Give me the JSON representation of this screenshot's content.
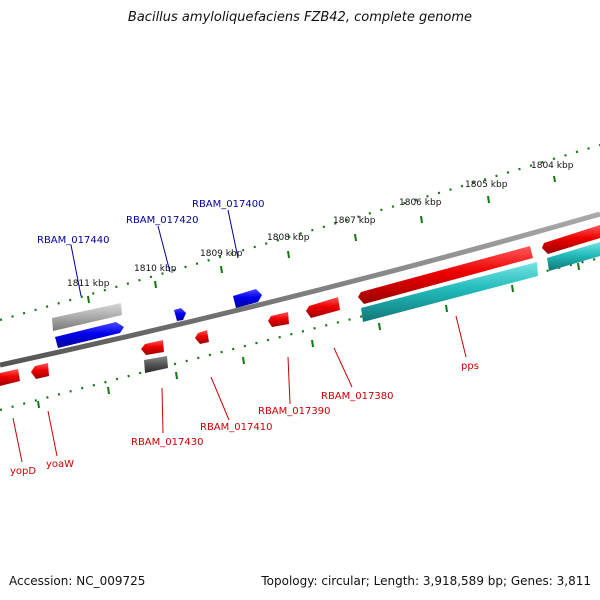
{
  "title": "Bacillus amyloliquefaciens FZB42, complete genome",
  "footer": {
    "accession": "Accession: NC_009725",
    "summary": "Topology: circular; Length: 3,918,589 bp; Genes: 3,811"
  },
  "colors": {
    "backbone": "#808080",
    "tick": "#117711",
    "forward_gene": "#0000ee",
    "reverse_gene": "#ee0000",
    "cyan_feature": "#22bbbb",
    "grey_feature": "#aaaaaa",
    "dark_feature": "#555555",
    "forward_label": "#000099",
    "reverse_label": "#cc0000"
  },
  "ruler": {
    "unit": "kbp",
    "labels": [
      "1804 kbp",
      "1805 kbp",
      "1806 kbp",
      "1807 kbp",
      "1808 kbp",
      "1809 kbp",
      "1810 kbp",
      "1811 kbp"
    ]
  },
  "gene_labels": {
    "forward": [
      "RBAM_017400",
      "RBAM_017420",
      "RBAM_017440"
    ],
    "reverse": [
      "pps",
      "RBAM_017380",
      "RBAM_017390",
      "RBAM_017410",
      "RBAM_017430",
      "yoaW",
      "yopD"
    ]
  }
}
